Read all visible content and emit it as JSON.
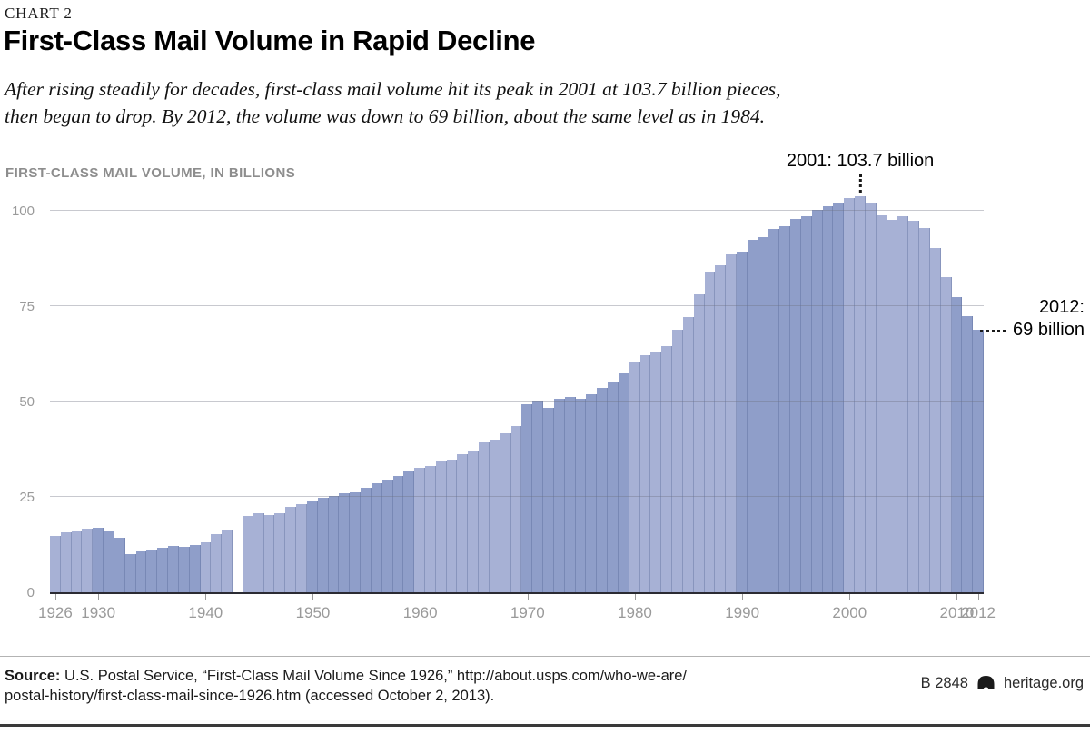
{
  "header": {
    "kicker": "CHART 2",
    "title": "First-Class Mail Volume in Rapid Decline",
    "subtitle_line1": "After rising steadily for decades, first-class mail volume hit its peak in 2001 at 103.7 billion pieces,",
    "subtitle_line2": "then began to drop. By 2012, the volume was down to 69 billion, about the same level as in 1984."
  },
  "chart_data": {
    "type": "bar",
    "title": "FIRST-CLASS MAIL VOLUME, IN BILLIONS",
    "units": "billions of pieces per year",
    "x": [
      1926,
      1927,
      1928,
      1929,
      1930,
      1931,
      1932,
      1933,
      1934,
      1935,
      1936,
      1937,
      1938,
      1939,
      1940,
      1941,
      1942,
      1943,
      1944,
      1945,
      1946,
      1947,
      1948,
      1949,
      1950,
      1951,
      1952,
      1953,
      1954,
      1955,
      1956,
      1957,
      1958,
      1959,
      1960,
      1961,
      1962,
      1963,
      1964,
      1965,
      1966,
      1967,
      1968,
      1969,
      1970,
      1971,
      1972,
      1973,
      1974,
      1975,
      1976,
      1977,
      1978,
      1979,
      1980,
      1981,
      1982,
      1983,
      1984,
      1985,
      1986,
      1987,
      1988,
      1989,
      1990,
      1991,
      1992,
      1993,
      1994,
      1995,
      1996,
      1997,
      1998,
      1999,
      2000,
      2001,
      2002,
      2003,
      2004,
      2005,
      2006,
      2007,
      2008,
      2009,
      2010,
      2011,
      2012
    ],
    "values": [
      14.8,
      15.6,
      16.0,
      16.6,
      16.8,
      16.0,
      14.3,
      10.0,
      10.7,
      11.2,
      11.7,
      12.1,
      11.9,
      12.4,
      13.2,
      15.2,
      16.4,
      null,
      20.0,
      20.6,
      20.2,
      20.8,
      22.4,
      23.2,
      24.1,
      24.8,
      25.3,
      26.0,
      26.3,
      27.4,
      28.6,
      29.6,
      30.4,
      31.8,
      32.7,
      33.2,
      34.5,
      34.8,
      36.3,
      37.1,
      39.3,
      39.9,
      41.7,
      43.5,
      49.4,
      50.2,
      48.4,
      50.6,
      51.2,
      50.8,
      52.0,
      53.5,
      55.0,
      57.5,
      60.2,
      62.1,
      62.9,
      64.5,
      68.9,
      72.1,
      78.0,
      84.0,
      85.6,
      88.6,
      89.2,
      92.4,
      93.2,
      95.2,
      95.9,
      97.9,
      98.5,
      100.3,
      101.1,
      102.1,
      103.3,
      103.7,
      101.9,
      98.9,
      97.7,
      98.6,
      97.4,
      95.5,
      90.2,
      82.6,
      77.4,
      72.3,
      68.7
    ],
    "missing_year": 1943,
    "ylim": [
      0,
      105
    ],
    "yticks": [
      0,
      25,
      50,
      75,
      100
    ],
    "xticks": [
      1926,
      1930,
      1940,
      1950,
      1960,
      1970,
      1980,
      1990,
      2000,
      2010,
      2012
    ],
    "grid": true,
    "legend": false,
    "annotations": {
      "peak": {
        "year": 2001,
        "value": 103.7,
        "label": "2001: 103.7 billion"
      },
      "last": {
        "year": 2012,
        "value": 68.7,
        "line1": "2012:",
        "line2": "69 billion"
      }
    },
    "colors": {
      "bar_light": "#a7b1d5",
      "bar_dark": "#8f9ec9",
      "gridline": "#cccccc",
      "axis_text": "#9a9a9a",
      "baseline": "#2b2b33"
    }
  },
  "footer": {
    "source_label": "Source:",
    "source_line1": " U.S. Postal Service, “First-Class Mail Volume Since 1926,” http://about.usps.com/who-we-are/",
    "source_line2": "postal-history/first-class-mail-since-1926.htm (accessed October 2, 2013).",
    "doc_id": "B 2848",
    "site": "heritage.org"
  }
}
